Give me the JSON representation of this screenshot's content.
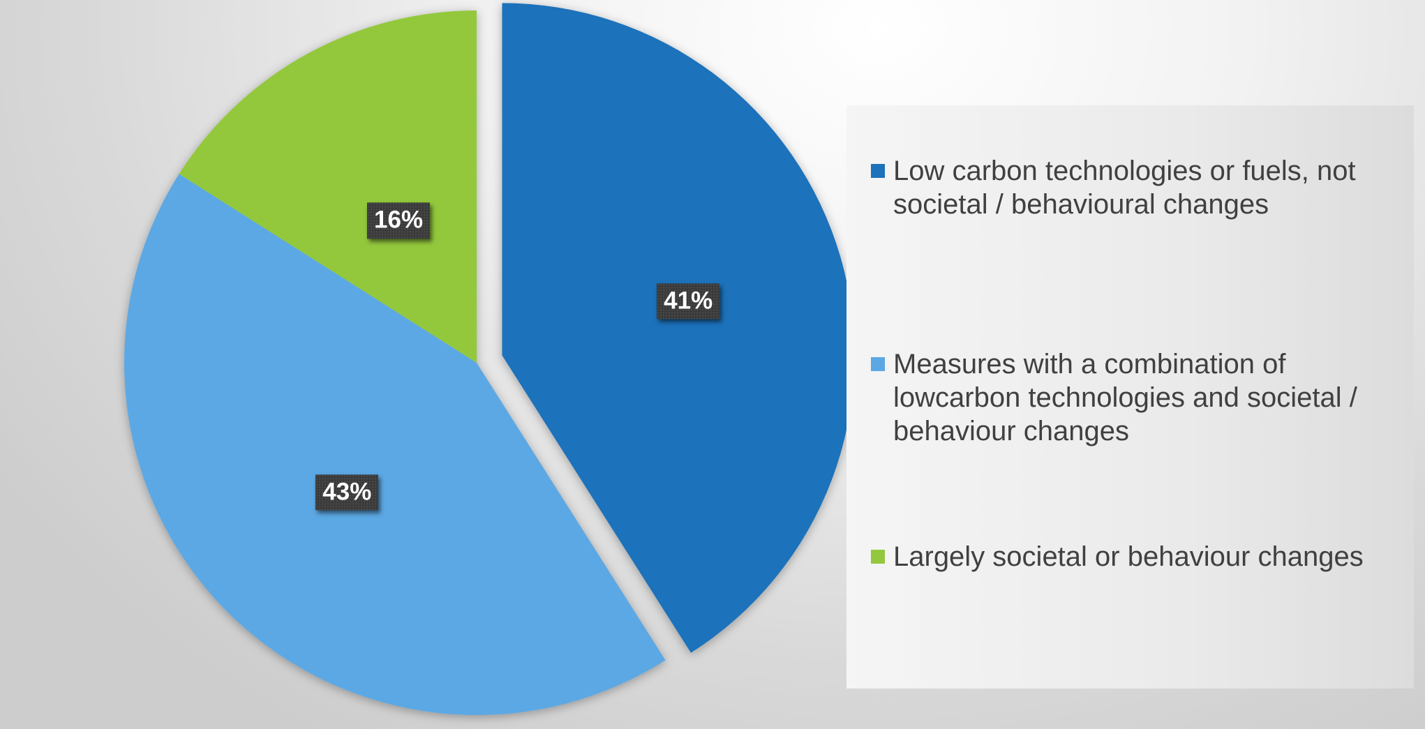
{
  "chart_data": {
    "type": "pie",
    "title": "",
    "slices": [
      {
        "label": "Low carbon technologies or fuels, not societal / behavioural changes",
        "value": 41,
        "display": "41%",
        "color": "#1d72bb",
        "exploded": true
      },
      {
        "label": "Measures with a combination of lowcarbon technologies and societal / behaviour changes",
        "value": 43,
        "display": "43%",
        "color": "#5ba8e4",
        "exploded": false
      },
      {
        "label": "Largely societal or behaviour changes",
        "value": 16,
        "display": "16%",
        "color": "#93c83e",
        "exploded": false
      }
    ],
    "legend_position": "right"
  }
}
